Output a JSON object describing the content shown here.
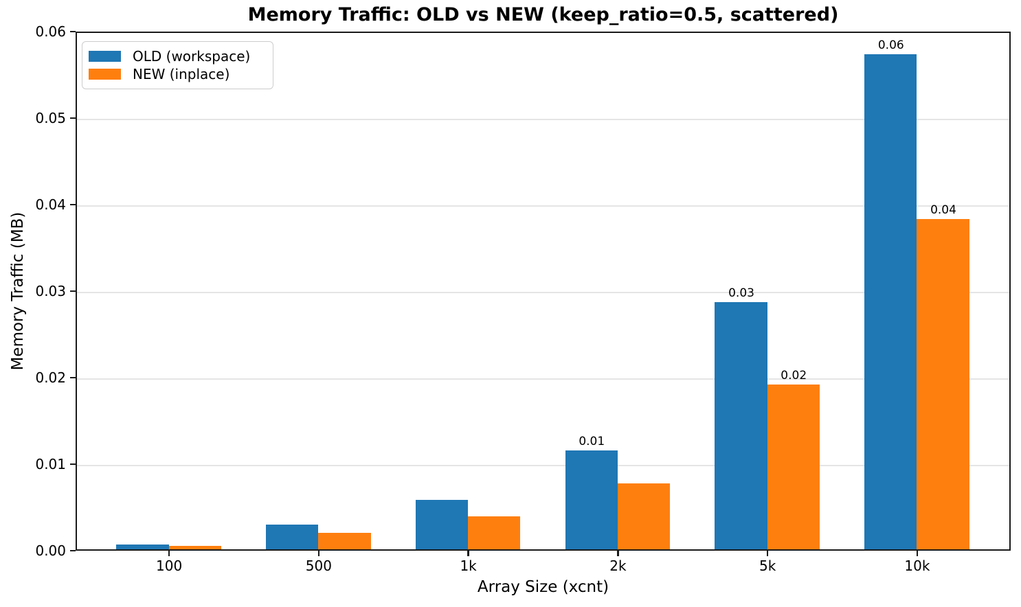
{
  "chart_data": {
    "type": "bar",
    "title": "Memory Traffic: OLD vs NEW (keep_ratio=0.5, scattered)",
    "xlabel": "Array Size (xcnt)",
    "ylabel": "Memory Traffic (MB)",
    "categories": [
      "100",
      "500",
      "1k",
      "2k",
      "5k",
      "10k"
    ],
    "series": [
      {
        "key": "old",
        "name": "OLD (workspace)",
        "color": "#1f77b4",
        "values": [
          0.00057,
          0.00286,
          0.00572,
          0.01144,
          0.02861,
          0.05722
        ],
        "bar_labels": [
          "",
          "",
          "",
          "0.01",
          "0.03",
          "0.06"
        ]
      },
      {
        "key": "new",
        "name": "NEW (inplace)",
        "color": "#ff7f0e",
        "values": [
          0.00038,
          0.00191,
          0.00381,
          0.00763,
          0.01907,
          0.03815
        ],
        "bar_labels": [
          "",
          "",
          "",
          "",
          "0.02",
          "0.04"
        ]
      }
    ],
    "ylim": [
      0,
      0.06
    ],
    "ytick_labels": [
      "0.00",
      "0.01",
      "0.02",
      "0.03",
      "0.04",
      "0.05",
      "0.06"
    ],
    "ytick_values": [
      0,
      0.01,
      0.02,
      0.03,
      0.04,
      0.05,
      0.06
    ],
    "gridline_values": [
      0.01,
      0.02,
      0.03,
      0.04,
      0.05
    ],
    "bar_width_units": 0.35,
    "xlim": [
      -0.625,
      5.625
    ],
    "grid": true,
    "legend_position": "upper left"
  }
}
